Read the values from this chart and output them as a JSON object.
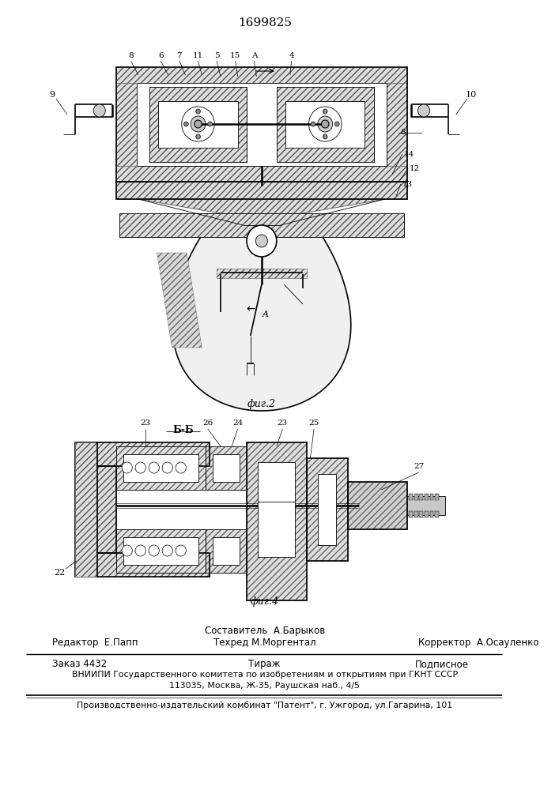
{
  "patent_number": "1699825",
  "fig2_caption": "фиг.2",
  "fig4_caption": "фиг.4",
  "footer_sestavitel": "Составитель  А.Барыков",
  "footer_tehred": "Техред М.Моргентал",
  "footer_redaktor": "Редактор  Е.Папп",
  "footer_korrektor": "Корректор  А.Осауленко",
  "footer_zakaz": "Заказ 4432",
  "footer_tirazh": "Тираж",
  "footer_podpisnoe": "Подписное",
  "footer_vniipis": "ВНИИПИ Государственного комитета по изобретениям и открытиям при ГКНТ СССР",
  "footer_address": "113035, Москва, Ж-35, Раушская наб., 4/5",
  "footer_production": "Производственно-издательский комбинат \"Патент\", г. Ужгород, ул.Гагарина, 101",
  "bg_color": "#ffffff",
  "lc": "#000000",
  "hatch_color": "#444444",
  "gray_light": "#e8e8e8",
  "gray_mid": "#cccccc",
  "gray_dark": "#aaaaaa"
}
